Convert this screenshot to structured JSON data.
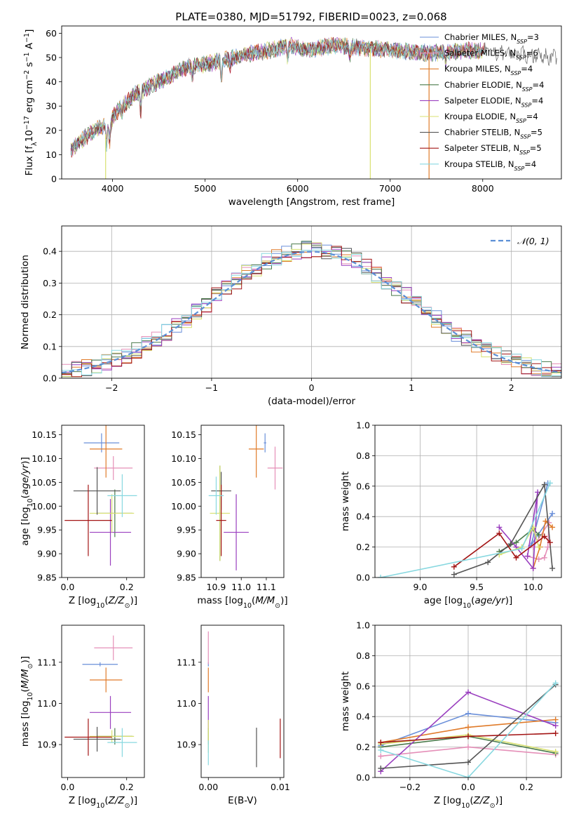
{
  "figure": {
    "title": "PLATE=0380, MJD=51792, FIBERID=0023, z=0.068"
  },
  "colors": {
    "chabrier_miles": "#6a8fd9",
    "salpeter_miles": "#e58fb8",
    "kroupa_miles": "#e07b2a",
    "chabrier_elodie": "#4a7a4a",
    "salpeter_elodie": "#9a3fbf",
    "kroupa_elodie": "#d8e070",
    "chabrier_stelib": "#555555",
    "salpeter_stelib": "#a31515",
    "kroupa_stelib": "#88d8e0",
    "gaussian": "#5b8fd6",
    "grid": "#b0b0b0"
  },
  "chart_data": [
    {
      "id": "spectrum",
      "type": "line",
      "xlabel": "wavelength [Angstrom, rest frame]",
      "ylabel": "Flux [f_λ10^-17 erg cm^-2 s^-1 A^-1]",
      "xlim": [
        3450,
        8850
      ],
      "ylim": [
        0,
        63
      ],
      "xticks": [
        4000,
        5000,
        6000,
        7000,
        8000
      ],
      "yticks": [
        0,
        10,
        20,
        30,
        40,
        50,
        60
      ],
      "grid": false,
      "legend_position": "top-right",
      "legend": [
        "Chabrier MILES, N_SSP=3",
        "Salpeter MILES, N_SSP=6",
        "Kroupa MILES, N_SSP=4",
        "Chabrier ELODIE, N_SSP=4",
        "Salpeter ELODIE, N_SSP=4",
        "Kroupa ELODIE, N_SSP=4",
        "Chabrier STELIB, N_SSP=5",
        "Salpeter STELIB, N_SSP=5",
        "Kroupa STELIB, N_SSP=4"
      ],
      "continuum": {
        "x": [
          3550,
          3700,
          3850,
          3950,
          4050,
          4250,
          4500,
          4800,
          5100,
          5400,
          5700,
          5900,
          6100,
          6400,
          6700,
          7000,
          7300,
          7600,
          7900,
          8200,
          8500,
          8800
        ],
        "y": [
          12,
          17,
          21,
          22,
          28,
          35,
          40,
          46,
          48,
          51,
          53,
          55,
          53,
          55,
          54,
          53,
          52,
          52,
          53,
          52,
          51,
          50
        ]
      },
      "absorption_dips": [
        {
          "x": 3934,
          "depth": 9
        },
        {
          "x": 3969,
          "depth": 8
        },
        {
          "x": 4102,
          "depth": 3
        },
        {
          "x": 4304,
          "depth": 8
        },
        {
          "x": 4861,
          "depth": 4
        },
        {
          "x": 5175,
          "depth": 9
        },
        {
          "x": 5270,
          "depth": 3
        },
        {
          "x": 5892,
          "depth": 6
        },
        {
          "x": 6563,
          "depth": 4
        },
        {
          "x": 7600,
          "depth": 5
        }
      ],
      "spikes": [
        {
          "x": 3925,
          "series": 5,
          "to": 0
        },
        {
          "x": 6785,
          "series": 5,
          "to": 0
        },
        {
          "x": 7420,
          "series": 2,
          "to": 0
        }
      ]
    },
    {
      "id": "residuals",
      "type": "step",
      "xlabel": "(data-model)/error",
      "ylabel": "Normed distribution",
      "xlim": [
        -2.5,
        2.5
      ],
      "ylim": [
        0,
        0.48
      ],
      "xticks": [
        -2,
        -1,
        0,
        1,
        2
      ],
      "yticks": [
        0.0,
        0.1,
        0.2,
        0.3,
        0.4
      ],
      "grid": true,
      "legend_position": "top-right",
      "legend": [
        "𝒩(0, 1)"
      ],
      "bin_width": 0.1
    },
    {
      "id": "age_vs_Z",
      "type": "errorbar",
      "xlabel": "Z [log10(Z/Z⊙)]",
      "ylabel": "age [log10(age/yr)]",
      "xlim": [
        -0.02,
        0.26
      ],
      "ylim": [
        9.85,
        10.17
      ],
      "xticks": [
        0.0,
        0.2
      ],
      "yticks": [
        9.85,
        9.9,
        9.95,
        10.0,
        10.05,
        10.1,
        10.15
      ],
      "grid": false,
      "points": [
        {
          "s": 0,
          "x": 0.115,
          "y": 10.133,
          "xe": 0.06,
          "ye": 0.02
        },
        {
          "s": 1,
          "x": 0.155,
          "y": 10.08,
          "xe": 0.065,
          "ye": 0.025
        },
        {
          "s": 2,
          "x": 0.13,
          "y": 10.12,
          "xe": 0.055,
          "ye": 0.06
        },
        {
          "s": 3,
          "x": 0.16,
          "y": 9.985,
          "xe": 0.06,
          "ye": 0.05
        },
        {
          "s": 4,
          "x": 0.145,
          "y": 9.945,
          "xe": 0.07,
          "ye": 0.07
        },
        {
          "s": 5,
          "x": 0.15,
          "y": 9.985,
          "xe": 0.075,
          "ye": 0.04
        },
        {
          "s": 6,
          "x": 0.1,
          "y": 10.032,
          "xe": 0.08,
          "ye": 0.05
        },
        {
          "s": 7,
          "x": 0.07,
          "y": 9.97,
          "xe": 0.08,
          "ye": 0.075
        },
        {
          "s": 8,
          "x": 0.185,
          "y": 10.022,
          "xe": 0.05,
          "ye": 0.045
        }
      ]
    },
    {
      "id": "age_vs_mass",
      "type": "errorbar",
      "xlabel": "mass [log10(M/M⊙)]",
      "ylabel": "",
      "xlim": [
        10.84,
        11.17
      ],
      "ylim": [
        9.85,
        10.17
      ],
      "xticks": [
        10.9,
        11.0,
        11.1
      ],
      "yticks": [
        9.85,
        9.9,
        9.95,
        10.0,
        10.05,
        10.1,
        10.15
      ],
      "grid": false,
      "points": [
        {
          "s": 0,
          "x": 11.095,
          "y": 10.133,
          "xe": 0.005,
          "ye": 0.02
        },
        {
          "s": 1,
          "x": 11.135,
          "y": 10.08,
          "xe": 0.03,
          "ye": 0.045
        },
        {
          "s": 2,
          "x": 11.06,
          "y": 10.12,
          "xe": 0.03,
          "ye": 0.06
        },
        {
          "s": 3,
          "x": 10.915,
          "y": 9.985,
          "xe": 0.005,
          "ye": 0.1
        },
        {
          "s": 4,
          "x": 10.98,
          "y": 9.945,
          "xe": 0.05,
          "ye": 0.08
        },
        {
          "s": 5,
          "x": 10.915,
          "y": 9.985,
          "xe": 0.04,
          "ye": 0.1
        },
        {
          "s": 6,
          "x": 10.92,
          "y": 10.032,
          "xe": 0.04,
          "ye": 0.04
        },
        {
          "s": 7,
          "x": 10.92,
          "y": 9.97,
          "xe": 0.02,
          "ye": 0.075
        },
        {
          "s": 8,
          "x": 10.9,
          "y": 10.022,
          "xe": 0.03,
          "ye": 0.04
        }
      ]
    },
    {
      "id": "weight_vs_age",
      "type": "line",
      "xlabel": "age  [log10(age/yr)]",
      "ylabel": "mass weight",
      "xlim": [
        8.6,
        10.25
      ],
      "ylim": [
        0.0,
        1.0
      ],
      "xticks": [
        9.0,
        9.5,
        10.0
      ],
      "yticks": [
        0.0,
        0.2,
        0.4,
        0.6,
        0.8,
        1.0
      ],
      "grid": true,
      "series": [
        {
          "s": 0,
          "x": [
            10.13,
            9.98,
            10.17
          ],
          "y": [
            0.62,
            0.21,
            0.42
          ]
        },
        {
          "s": 1,
          "x": [
            9.95,
            10.05,
            10.1,
            10.13,
            10.14,
            10.0
          ],
          "y": [
            0.14,
            0.12,
            0.13,
            0.2,
            0.36,
            0.2
          ]
        },
        {
          "s": 2,
          "x": [
            10.17,
            10.11,
            10.06,
            10.0
          ],
          "y": [
            0.33,
            0.37,
            0.2,
            0.06
          ]
        },
        {
          "s": 3,
          "x": [
            9.7,
            9.85,
            10.0,
            10.05
          ],
          "y": [
            0.17,
            0.23,
            0.32,
            0.28
          ]
        },
        {
          "s": 4,
          "x": [
            9.7,
            9.85,
            10.0,
            10.04,
            9.95
          ],
          "y": [
            0.33,
            0.2,
            0.06,
            0.56,
            0.14
          ]
        },
        {
          "s": 5,
          "x": [
            9.7,
            9.9,
            10.0,
            10.05
          ],
          "y": [
            0.15,
            0.2,
            0.33,
            0.2
          ]
        },
        {
          "s": 6,
          "x": [
            9.3,
            9.6,
            9.8,
            10.1,
            10.17
          ],
          "y": [
            0.02,
            0.1,
            0.22,
            0.61,
            0.06
          ]
        },
        {
          "s": 7,
          "x": [
            9.3,
            9.7,
            9.85,
            10.1,
            10.15
          ],
          "y": [
            0.07,
            0.29,
            0.13,
            0.27,
            0.23
          ]
        },
        {
          "s": 8,
          "x": [
            8.65,
            9.9,
            10.15
          ],
          "y": [
            0.0,
            0.19,
            0.62
          ]
        }
      ]
    },
    {
      "id": "mass_vs_Z",
      "type": "errorbar",
      "xlabel": "Z [log10(Z/Z⊙)]",
      "ylabel": "mass [log10(M/M⊙)]",
      "xlim": [
        -0.02,
        0.26
      ],
      "ylim": [
        10.82,
        11.19
      ],
      "xticks": [
        0.0,
        0.2
      ],
      "yticks": [
        10.9,
        11.0,
        11.1
      ],
      "grid": false,
      "points": [
        {
          "s": 0,
          "x": 0.11,
          "y": 11.095,
          "xe": 0.06,
          "ye": 0.005
        },
        {
          "s": 1,
          "x": 0.155,
          "y": 11.135,
          "xe": 0.065,
          "ye": 0.03
        },
        {
          "s": 2,
          "x": 0.13,
          "y": 11.057,
          "xe": 0.055,
          "ye": 0.03
        },
        {
          "s": 3,
          "x": 0.16,
          "y": 10.92,
          "xe": 0.06,
          "ye": 0.02
        },
        {
          "s": 4,
          "x": 0.145,
          "y": 10.978,
          "xe": 0.07,
          "ye": 0.04
        },
        {
          "s": 5,
          "x": 0.15,
          "y": 10.92,
          "xe": 0.075,
          "ye": 0.015
        },
        {
          "s": 6,
          "x": 0.1,
          "y": 10.913,
          "xe": 0.08,
          "ye": 0.03
        },
        {
          "s": 7,
          "x": 0.07,
          "y": 10.918,
          "xe": 0.08,
          "ye": 0.045
        },
        {
          "s": 8,
          "x": 0.185,
          "y": 10.905,
          "xe": 0.05,
          "ye": 0.035
        }
      ]
    },
    {
      "id": "mass_vs_ebv",
      "type": "errorbar",
      "xlabel": "E(B-V)",
      "ylabel": "",
      "xlim": [
        -0.001,
        0.0105
      ],
      "ylim": [
        10.82,
        11.19
      ],
      "xticks": [
        0.0,
        0.01
      ],
      "yticks": [
        10.9,
        11.0,
        11.1
      ],
      "grid": false,
      "points": [
        {
          "s": 0,
          "x": 0.0,
          "y": 11.095,
          "xe": 0.0,
          "ye": 0.005
        },
        {
          "s": 1,
          "x": 0.0,
          "y": 11.135,
          "xe": 0.0,
          "ye": 0.04
        },
        {
          "s": 2,
          "x": 0.0,
          "y": 11.057,
          "xe": 0.0,
          "ye": 0.03
        },
        {
          "s": 3,
          "x": 0.0,
          "y": 10.92,
          "xe": 0.0,
          "ye": 0.02
        },
        {
          "s": 4,
          "x": 0.0,
          "y": 10.978,
          "xe": 0.0,
          "ye": 0.04
        },
        {
          "s": 5,
          "x": 0.0,
          "y": 10.92,
          "xe": 0.0,
          "ye": 0.04
        },
        {
          "s": 6,
          "x": 0.0067,
          "y": 10.893,
          "xe": 0.0,
          "ye": 0.048
        },
        {
          "s": 7,
          "x": 0.01,
          "y": 10.915,
          "xe": 0.0,
          "ye": 0.048
        },
        {
          "s": 8,
          "x": 0.0,
          "y": 10.88,
          "xe": 0.0,
          "ye": 0.03
        }
      ]
    },
    {
      "id": "weight_vs_Z",
      "type": "line",
      "xlabel": "Z [log10(Z/Z⊙)]",
      "ylabel": "mass weight",
      "xlim": [
        -0.32,
        0.32
      ],
      "ylim": [
        0.0,
        1.0
      ],
      "xticks": [
        -0.2,
        0.0,
        0.2
      ],
      "yticks": [
        0.0,
        0.2,
        0.4,
        0.6,
        0.8,
        1.0
      ],
      "grid": true,
      "series": [
        {
          "s": 0,
          "x": [
            -0.3,
            0.0,
            0.3
          ],
          "y": [
            0.21,
            0.42,
            0.36
          ]
        },
        {
          "s": 1,
          "x": [
            -0.3,
            0.0,
            0.3
          ],
          "y": [
            0.14,
            0.2,
            0.15
          ]
        },
        {
          "s": 2,
          "x": [
            -0.3,
            0.0,
            0.3
          ],
          "y": [
            0.23,
            0.33,
            0.38
          ]
        },
        {
          "s": 3,
          "x": [
            -0.3,
            0.0,
            0.3
          ],
          "y": [
            0.2,
            0.27,
            0.16
          ]
        },
        {
          "s": 4,
          "x": [
            -0.3,
            0.0,
            0.3
          ],
          "y": [
            0.04,
            0.56,
            0.34
          ]
        },
        {
          "s": 5,
          "x": [
            -0.3,
            0.0,
            0.3
          ],
          "y": [
            0.22,
            0.28,
            0.17
          ]
        },
        {
          "s": 6,
          "x": [
            -0.3,
            0.0,
            0.3
          ],
          "y": [
            0.06,
            0.1,
            0.61
          ]
        },
        {
          "s": 7,
          "x": [
            -0.3,
            0.0,
            0.3
          ],
          "y": [
            0.23,
            0.27,
            0.29
          ]
        },
        {
          "s": 8,
          "x": [
            -0.3,
            0.0,
            0.3
          ],
          "y": [
            0.18,
            0.0,
            0.62
          ]
        }
      ]
    }
  ]
}
